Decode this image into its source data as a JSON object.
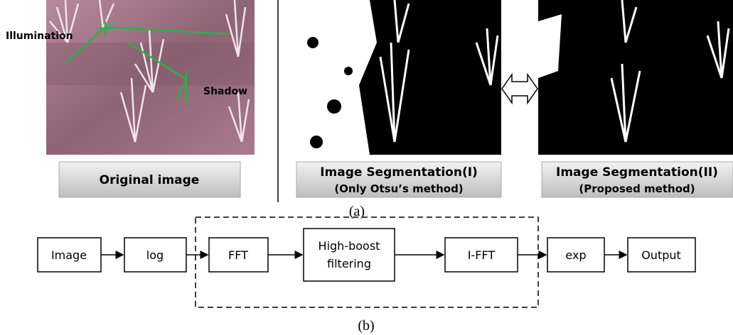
{
  "panel_a": {
    "original": {
      "annotations": [
        "Illumination",
        "Shadow"
      ],
      "caption": "Original image"
    },
    "segmentation_1": {
      "caption": [
        "Image Segmentation(I)",
        "(Only Otsu’s method)"
      ]
    },
    "segmentation_2": {
      "caption": [
        "Image Segmentation(II)",
        "(Proposed method)"
      ]
    },
    "label": "(a)"
  },
  "panel_b": {
    "nodes": [
      {
        "label": "Image"
      },
      {
        "label": "log"
      },
      {
        "label": "FFT"
      },
      {
        "label": [
          "High-boost",
          "filtering"
        ]
      },
      {
        "label": "I-FFT"
      },
      {
        "label": "exp"
      },
      {
        "label": "Output"
      }
    ],
    "label": "(b)"
  }
}
